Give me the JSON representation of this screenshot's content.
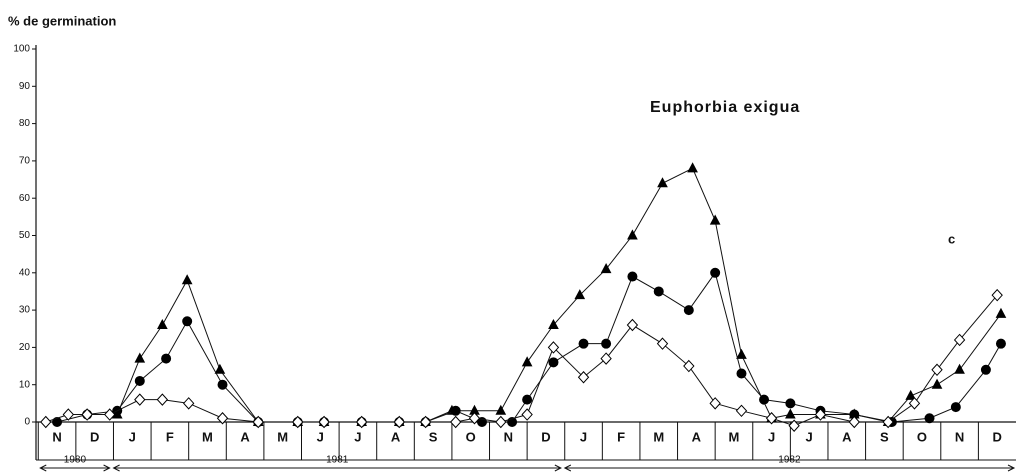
{
  "chart_data": {
    "type": "line",
    "title": "Euphorbia exigua",
    "y_label": "% de germination",
    "annotation": "c",
    "xlim": [
      -0.56,
      25.5
    ],
    "ylim": [
      0,
      100
    ],
    "yticks": [
      0,
      10,
      20,
      30,
      40,
      50,
      60,
      70,
      80,
      90,
      100
    ],
    "xticks": [
      {
        "value": 0,
        "label": "N"
      },
      {
        "value": 1,
        "label": "D"
      },
      {
        "value": 2,
        "label": "J"
      },
      {
        "value": 3,
        "label": "F"
      },
      {
        "value": 4,
        "label": "M"
      },
      {
        "value": 5,
        "label": "A"
      },
      {
        "value": 6,
        "label": "M"
      },
      {
        "value": 7,
        "label": "J"
      },
      {
        "value": 8,
        "label": "J"
      },
      {
        "value": 9,
        "label": "A"
      },
      {
        "value": 10,
        "label": "S"
      },
      {
        "value": 11,
        "label": "O"
      },
      {
        "value": 12,
        "label": "N"
      },
      {
        "value": 13,
        "label": "D"
      },
      {
        "value": 14,
        "label": "J"
      },
      {
        "value": 15,
        "label": "F"
      },
      {
        "value": 16,
        "label": "M"
      },
      {
        "value": 17,
        "label": "A"
      },
      {
        "value": 18,
        "label": "M"
      },
      {
        "value": 19,
        "label": "J"
      },
      {
        "value": 20,
        "label": "J"
      },
      {
        "value": 21,
        "label": "A"
      },
      {
        "value": 22,
        "label": "S"
      },
      {
        "value": 23,
        "label": "O"
      },
      {
        "value": 24,
        "label": "N"
      },
      {
        "value": 25,
        "label": "D"
      }
    ],
    "years": [
      {
        "label": "1980",
        "start": -0.5,
        "end": 1.45
      },
      {
        "label": "1981",
        "start": 1.45,
        "end": 13.45
      },
      {
        "label": "1982",
        "start": 13.45,
        "end": 25.5
      }
    ],
    "series": [
      {
        "marker": "triangle",
        "color": "#000000",
        "x": [
          1.6,
          2.2,
          2.8,
          3.46,
          4.33,
          5.35,
          6.4,
          7.1,
          8.1,
          9.1,
          9.8,
          10.5,
          11.1,
          11.8,
          12.5,
          13.2,
          13.9,
          14.6,
          15.3,
          16.1,
          16.9,
          17.5,
          18.2,
          19.0,
          19.5,
          20.3,
          21.2,
          22.1,
          22.7,
          23.4,
          24.0,
          25.1
        ],
        "values": [
          2,
          17,
          26,
          38,
          14,
          0,
          0,
          0,
          0,
          0,
          0,
          3,
          3,
          3,
          16,
          26,
          34,
          41,
          50,
          64,
          68,
          54,
          18,
          1,
          2,
          2,
          2,
          0,
          7,
          10,
          14,
          29
        ]
      },
      {
        "marker": "circle",
        "color": "#000000",
        "x": [
          0,
          0.8,
          1.6,
          2.2,
          2.9,
          3.46,
          4.4,
          5.35,
          6.4,
          7.1,
          8.1,
          9.1,
          9.8,
          10.6,
          11.3,
          12.1,
          12.5,
          13.2,
          14.0,
          14.6,
          15.3,
          16.0,
          16.8,
          17.5,
          18.2,
          18.8,
          19.5,
          20.3,
          21.2,
          22.2,
          23.2,
          23.9,
          24.7,
          25.1
        ],
        "values": [
          0,
          2,
          3,
          11,
          17,
          27,
          10,
          0,
          0,
          0,
          0,
          0,
          0,
          3,
          0,
          0,
          6,
          16,
          21,
          21,
          39,
          35,
          30,
          40,
          13,
          6,
          5,
          3,
          2,
          0,
          1,
          4,
          14,
          21
        ]
      },
      {
        "marker": "diamond",
        "color": "#000000",
        "x": [
          -0.3,
          0.3,
          0.8,
          1.4,
          2.2,
          2.8,
          3.5,
          4.4,
          5.35,
          6.4,
          7.1,
          8.1,
          9.1,
          9.8,
          10.6,
          11.1,
          11.8,
          12.5,
          13.2,
          14.0,
          14.6,
          15.3,
          16.1,
          16.8,
          17.5,
          18.2,
          19.0,
          19.6,
          20.3,
          21.2,
          22.1,
          22.8,
          23.4,
          24.0,
          25.0
        ],
        "values": [
          0,
          2,
          2,
          2,
          6,
          6,
          5,
          1,
          0,
          0,
          0,
          0,
          0,
          0,
          0,
          1,
          0,
          2,
          20,
          12,
          17,
          26,
          21,
          15,
          5,
          3,
          1,
          -1,
          2,
          0,
          0,
          5,
          14,
          22,
          34
        ]
      }
    ]
  }
}
